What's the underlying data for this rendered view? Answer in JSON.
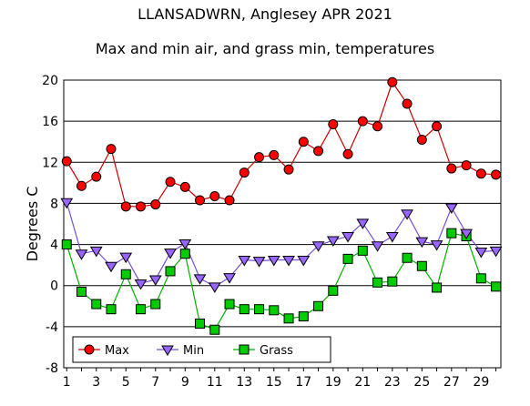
{
  "chart_data": {
    "type": "line",
    "title": "LLANSADWRN, Anglesey APR 2021",
    "subtitle": "Max and min air, and grass min, temperatures",
    "xlabel": "",
    "ylabel": "Degrees C",
    "xlim": [
      1,
      30
    ],
    "ylim": [
      -8,
      20
    ],
    "x_ticks": [
      1,
      3,
      5,
      7,
      9,
      11,
      13,
      15,
      17,
      19,
      21,
      23,
      25,
      27,
      29
    ],
    "y_ticks": [
      -8,
      -4,
      0,
      4,
      8,
      12,
      16,
      20
    ],
    "grid": "horizontal",
    "legend_position": "bottom-left",
    "x": [
      1,
      2,
      3,
      4,
      5,
      6,
      7,
      8,
      9,
      10,
      11,
      12,
      13,
      14,
      15,
      16,
      17,
      18,
      19,
      20,
      21,
      22,
      23,
      24,
      25,
      26,
      27,
      28,
      29,
      30
    ],
    "series": [
      {
        "name": "Max",
        "color": "#ff0000",
        "line_color": "#cc0000",
        "marker": "circle",
        "values": [
          12.1,
          9.7,
          10.6,
          13.3,
          7.7,
          7.7,
          7.9,
          10.1,
          9.6,
          8.3,
          8.7,
          8.3,
          11.0,
          12.5,
          12.7,
          11.3,
          14.0,
          13.1,
          15.7,
          12.8,
          16.0,
          15.5,
          19.8,
          17.7,
          14.2,
          15.5,
          11.4,
          11.7,
          10.9,
          10.8
        ]
      },
      {
        "name": "Min",
        "color": "#9966ff",
        "line_color": "#7a4fd6",
        "marker": "triangle-down",
        "values": [
          8.1,
          3.1,
          3.4,
          1.9,
          2.8,
          0.2,
          0.6,
          3.2,
          4.1,
          0.7,
          -0.1,
          0.8,
          2.5,
          2.4,
          2.5,
          2.5,
          2.5,
          3.9,
          4.4,
          4.8,
          6.1,
          3.9,
          4.8,
          7.0,
          4.3,
          4.0,
          7.6,
          5.1,
          3.3,
          3.4
        ]
      },
      {
        "name": "Grass",
        "color": "#00cc00",
        "line_color": "#00b000",
        "marker": "square",
        "values": [
          4.0,
          -0.6,
          -1.8,
          -2.3,
          1.1,
          -2.3,
          -1.8,
          1.4,
          3.1,
          -3.7,
          -4.3,
          -1.8,
          -2.3,
          -2.3,
          -2.4,
          -3.2,
          -3.0,
          -2.0,
          -0.5,
          2.6,
          3.4,
          0.3,
          0.4,
          2.7,
          1.9,
          -0.2,
          5.1,
          4.8,
          0.7,
          -0.1
        ]
      }
    ]
  }
}
